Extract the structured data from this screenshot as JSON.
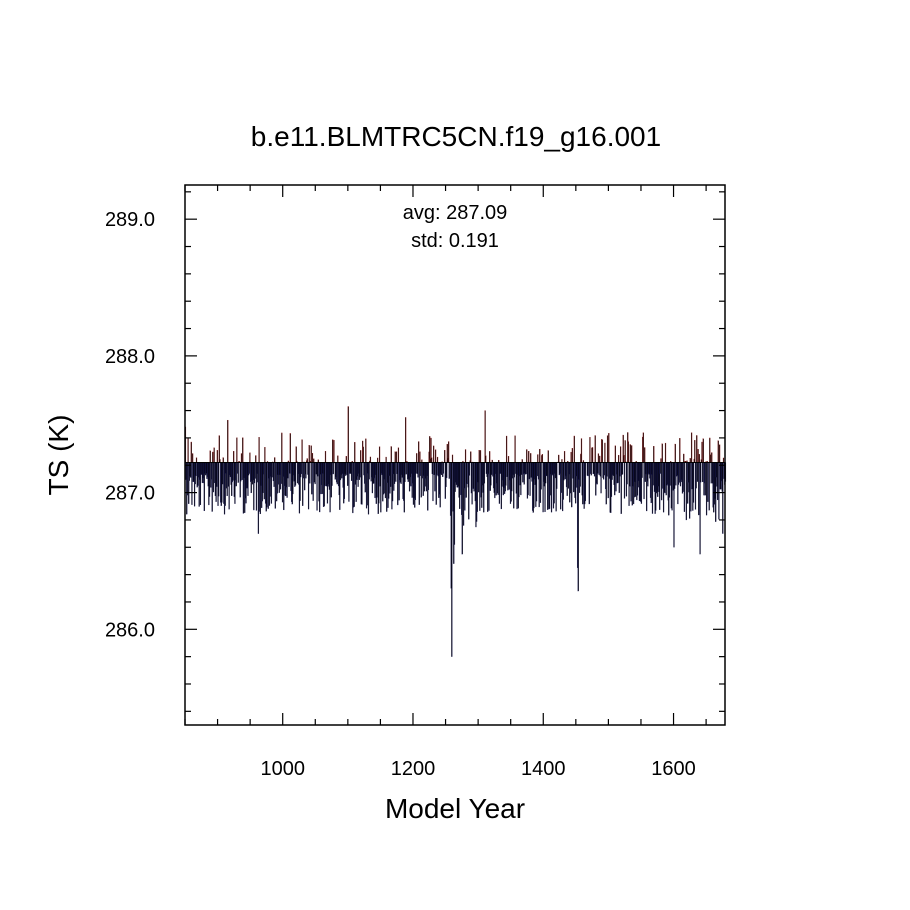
{
  "chart_data": {
    "type": "bar",
    "title": "b.e11.BLMTRC5CN.f19_g16.001",
    "xlabel": "Model Year",
    "ylabel": "TS (K)",
    "xlim": [
      850,
      1679
    ],
    "ylim": [
      285.3,
      289.25
    ],
    "baseline": 287.22,
    "x_ticks": [
      1000,
      1200,
      1400,
      1600
    ],
    "x_tick_labels": [
      "1000",
      "1200",
      "1400",
      "1600"
    ],
    "x_minor_step": 50,
    "y_ticks": [
      286.0,
      287.0,
      288.0,
      289.0
    ],
    "y_tick_labels": [
      "286.0",
      "287.0",
      "288.0",
      "289.0"
    ],
    "y_minor_step": 0.2,
    "annotations": {
      "avg": "avg: 287.09",
      "std": "std:  0.191"
    },
    "colors": {
      "above": "#8b1a1a",
      "below": "#1a1a5a",
      "fill": "#000000"
    },
    "years_start": 850,
    "years_end": 1679,
    "series_anomaly_summary": "annual TS bars relative to 287.22 K baseline",
    "key_points": [
      {
        "year": 850,
        "value": 287.48
      },
      {
        "year": 915,
        "value": 287.53
      },
      {
        "year": 962,
        "value": 286.7
      },
      {
        "year": 1100,
        "value": 287.63
      },
      {
        "year": 1188,
        "value": 287.55
      },
      {
        "year": 1258,
        "value": 286.3
      },
      {
        "year": 1259,
        "value": 285.8
      },
      {
        "year": 1262,
        "value": 286.48
      },
      {
        "year": 1263,
        "value": 286.62
      },
      {
        "year": 1275,
        "value": 286.55
      },
      {
        "year": 1310,
        "value": 287.6
      },
      {
        "year": 1452,
        "value": 286.45
      },
      {
        "year": 1453,
        "value": 286.28
      },
      {
        "year": 1600,
        "value": 286.6
      },
      {
        "year": 1640,
        "value": 286.55
      },
      {
        "year": 1655,
        "value": 287.4
      },
      {
        "year": 1675,
        "value": 286.7
      }
    ]
  }
}
